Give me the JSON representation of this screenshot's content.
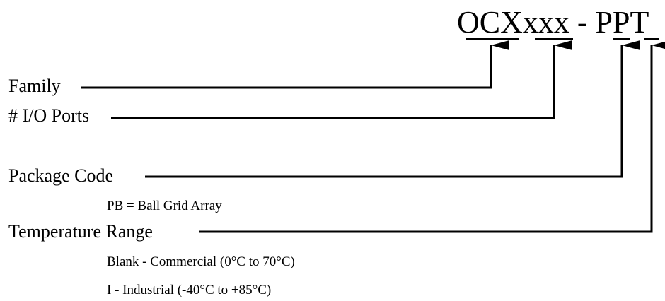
{
  "part_number": "OCXxxx - PPT",
  "fields": [
    {
      "label": "Family",
      "notes": []
    },
    {
      "label": "# I/O Ports",
      "notes": []
    },
    {
      "label": "Package Code",
      "notes": [
        "PB = Ball Grid Array"
      ]
    },
    {
      "label": "Temperature Range",
      "notes": [
        "Blank - Commercial (0°C to 70°C)",
        "I - Industrial (-40°C to +85°C)"
      ]
    }
  ]
}
